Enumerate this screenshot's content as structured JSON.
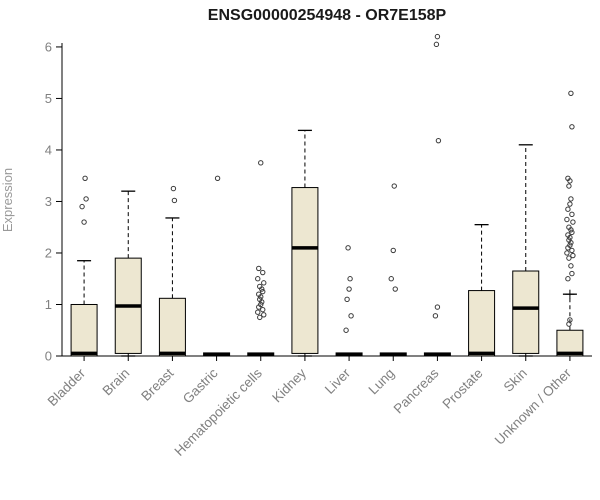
{
  "chart_data": {
    "type": "boxplot",
    "title": "ENSG00000254948 - OR7E158P",
    "xlabel": "",
    "ylabel": "Expression",
    "ylim": [
      0,
      6.29
    ],
    "yticks": [
      0,
      1,
      2,
      3,
      4,
      5,
      6
    ],
    "grid": false,
    "legend": null,
    "categories": [
      "Bladder",
      "Brain",
      "Breast",
      "Gastric",
      "Hematopoietic cells",
      "Kidney",
      "Liver",
      "Lung",
      "Pancreas",
      "Prostate",
      "Skin",
      "Unknown / Other"
    ],
    "boxes": [
      {
        "category": "Bladder",
        "q1": 0,
        "median": 0.05,
        "q3": 1.0,
        "whisker_low": 0,
        "whisker_high": 1.85,
        "outliers": [
          2.6,
          2.9,
          3.05,
          3.45
        ]
      },
      {
        "category": "Brain",
        "q1": 0.05,
        "median": 0.97,
        "q3": 1.9,
        "whisker_low": 0,
        "whisker_high": 3.2,
        "outliers": []
      },
      {
        "category": "Breast",
        "q1": 0,
        "median": 0.05,
        "q3": 1.12,
        "whisker_low": 0,
        "whisker_high": 2.68,
        "outliers": [
          3.02,
          3.25
        ]
      },
      {
        "category": "Gastric",
        "q1": 0,
        "median": 0.03,
        "q3": 0.06,
        "whisker_low": 0,
        "whisker_high": 0.06,
        "outliers": [
          3.45
        ]
      },
      {
        "category": "Hematopoietic cells",
        "q1": 0,
        "median": 0.03,
        "q3": 0.06,
        "whisker_low": 0,
        "whisker_high": 0.06,
        "outliers": [
          0.75,
          0.8,
          0.85,
          0.9,
          0.95,
          1.0,
          1.05,
          1.1,
          1.15,
          1.2,
          1.25,
          1.3,
          1.35,
          1.42,
          1.5,
          1.62,
          1.7,
          3.75
        ]
      },
      {
        "category": "Kidney",
        "q1": 0.05,
        "median": 2.1,
        "q3": 3.27,
        "whisker_low": 0,
        "whisker_high": 4.38,
        "outliers": []
      },
      {
        "category": "Liver",
        "q1": 0,
        "median": 0.03,
        "q3": 0.06,
        "whisker_low": 0,
        "whisker_high": 0.06,
        "outliers": [
          0.5,
          0.78,
          1.1,
          1.3,
          1.5,
          2.1
        ]
      },
      {
        "category": "Lung",
        "q1": 0,
        "median": 0.03,
        "q3": 0.06,
        "whisker_low": 0,
        "whisker_high": 0.06,
        "outliers": [
          1.3,
          1.5,
          2.05,
          3.3
        ]
      },
      {
        "category": "Pancreas",
        "q1": 0,
        "median": 0.03,
        "q3": 0.06,
        "whisker_low": 0,
        "whisker_high": 0.06,
        "outliers": [
          0.78,
          0.95,
          4.18,
          6.05,
          6.2
        ]
      },
      {
        "category": "Prostate",
        "q1": 0,
        "median": 0.05,
        "q3": 1.27,
        "whisker_low": 0,
        "whisker_high": 2.55,
        "outliers": []
      },
      {
        "category": "Skin",
        "q1": 0.05,
        "median": 0.93,
        "q3": 1.65,
        "whisker_low": 0,
        "whisker_high": 4.1,
        "outliers": []
      },
      {
        "category": "Unknown / Other",
        "q1": 0,
        "median": 0.05,
        "q3": 0.5,
        "whisker_low": 0,
        "whisker_high": 1.2,
        "mean": 1.2,
        "outliers": [
          0.62,
          0.7,
          1.5,
          1.6,
          1.75,
          1.9,
          1.95,
          2.0,
          2.05,
          2.1,
          2.15,
          2.2,
          2.25,
          2.3,
          2.35,
          2.4,
          2.45,
          2.5,
          2.6,
          2.65,
          2.75,
          2.85,
          2.95,
          3.05,
          3.3,
          3.4,
          3.45,
          4.45,
          5.1
        ]
      }
    ],
    "style": {
      "box_fill": "#EDE7D1",
      "box_stroke": "#000000",
      "median_color": "#000000",
      "whisker_style": "dashed",
      "outlier_marker": "open-circle",
      "axis_color": "#000000",
      "tick_label_color": "#808080",
      "title_color": "#1A1A1A",
      "ylabel_color": "#999999",
      "background": "#FFFFFF"
    }
  }
}
